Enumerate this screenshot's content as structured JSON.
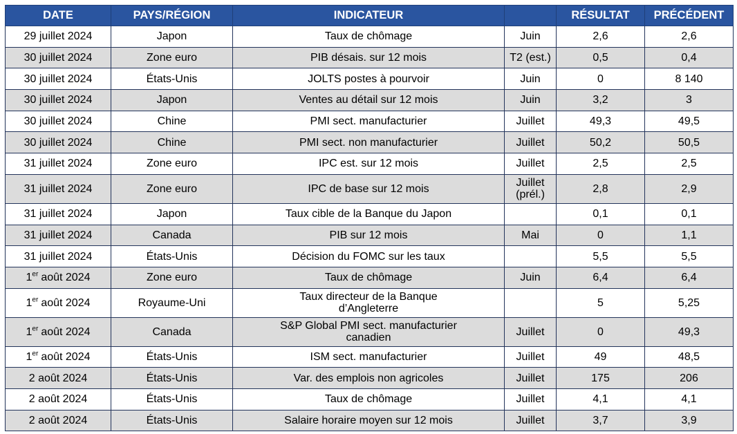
{
  "table": {
    "header": [
      "DATE",
      "PAYS/RÉGION",
      "INDICATEUR",
      "RÉSULTAT",
      "PRÉCÉDENT"
    ],
    "rows": [
      {
        "date": "29 juillet 2024",
        "region": "Japon",
        "indicator": [
          "Taux de chômage"
        ],
        "period": "Juin",
        "result": "2,6",
        "previous": "2,6"
      },
      {
        "date": "30 juillet 2024",
        "region": "Zone euro",
        "indicator": [
          "PIB désais. sur 12 mois"
        ],
        "period": "T2 (est.)",
        "result": "0,5",
        "previous": "0,4"
      },
      {
        "date": "30 juillet 2024",
        "region": "États-Unis",
        "indicator": [
          "JOLTS postes à pourvoir"
        ],
        "period": "Juin",
        "result": "0",
        "previous": "8 140"
      },
      {
        "date": "30 juillet 2024",
        "region": "Japon",
        "indicator": [
          "Ventes au détail sur 12 mois"
        ],
        "period": "Juin",
        "result": "3,2",
        "previous": "3"
      },
      {
        "date": "30 juillet 2024",
        "region": "Chine",
        "indicator": [
          "PMI sect. manufacturier"
        ],
        "period": "Juillet",
        "result": "49,3",
        "previous": "49,5"
      },
      {
        "date": "30 juillet 2024",
        "region": "Chine",
        "indicator": [
          "PMI sect. non manufacturier"
        ],
        "period": "Juillet",
        "result": "50,2",
        "previous": "50,5"
      },
      {
        "date": "31 juillet 2024",
        "region": "Zone euro",
        "indicator": [
          "IPC est. sur 12 mois"
        ],
        "period": "Juillet",
        "result": "2,5",
        "previous": "2,5"
      },
      {
        "date": "31 juillet 2024",
        "region": "Zone euro",
        "indicator": [
          "IPC de base sur 12 mois"
        ],
        "period": "Juillet (prél.)",
        "result": "2,8",
        "previous": "2,9"
      },
      {
        "date": "31 juillet 2024",
        "region": "Japon",
        "indicator": [
          "Taux cible de la Banque du Japon"
        ],
        "result": "0,1",
        "previous": "0,1"
      },
      {
        "date": "31 juillet 2024",
        "region": "Canada",
        "indicator": [
          "PIB sur 12 mois"
        ],
        "period": "Mai",
        "result": "0",
        "previous": "1,1"
      },
      {
        "date": "31 juillet 2024",
        "region": "États-Unis",
        "indicator": [
          "Décision du FOMC sur les taux"
        ],
        "result": "5,5",
        "previous": "5,5"
      },
      {
        "date": {
          "day": "1",
          "sup": "er",
          "rest": "août 2024"
        },
        "region": "Zone euro",
        "indicator": [
          "Taux de chômage"
        ],
        "period": "Juin",
        "result": "6,4",
        "previous": "6,4"
      },
      {
        "date": {
          "day": "1",
          "sup": "er",
          "rest": "août 2024"
        },
        "region": "Royaume-Uni",
        "indicator": [
          "Taux directeur de la Banque",
          "d’Angleterre"
        ],
        "result": "5",
        "previous": "5,25"
      },
      {
        "date": {
          "day": "1",
          "sup": "er",
          "rest": "août 2024"
        },
        "region": "Canada",
        "indicator": [
          "S&P Global PMI sect. manufacturier",
          "canadien"
        ],
        "period": "Juillet",
        "result": "0",
        "previous": "49,3"
      },
      {
        "date": {
          "day": "1",
          "sup": "er",
          "rest": "août 2024"
        },
        "region": "États-Unis",
        "indicator": [
          "ISM sect. manufacturier"
        ],
        "period": "Juillet",
        "result": "49",
        "previous": "48,5"
      },
      {
        "date": "2 août 2024",
        "region": "États-Unis",
        "indicator": [
          "Var. des emplois non agricoles"
        ],
        "period": "Juillet",
        "result": "175",
        "previous": "206"
      },
      {
        "date": "2 août 2024",
        "region": "États-Unis",
        "indicator": [
          "Taux de chômage"
        ],
        "period": "Juillet",
        "result": "4,1",
        "previous": "4,1"
      },
      {
        "date": "2 août 2024",
        "region": "États-Unis",
        "indicator": [
          "Salaire horaire moyen sur 12 mois"
        ],
        "period": "Juillet",
        "result": "3,7",
        "previous": "3,9"
      }
    ]
  }
}
